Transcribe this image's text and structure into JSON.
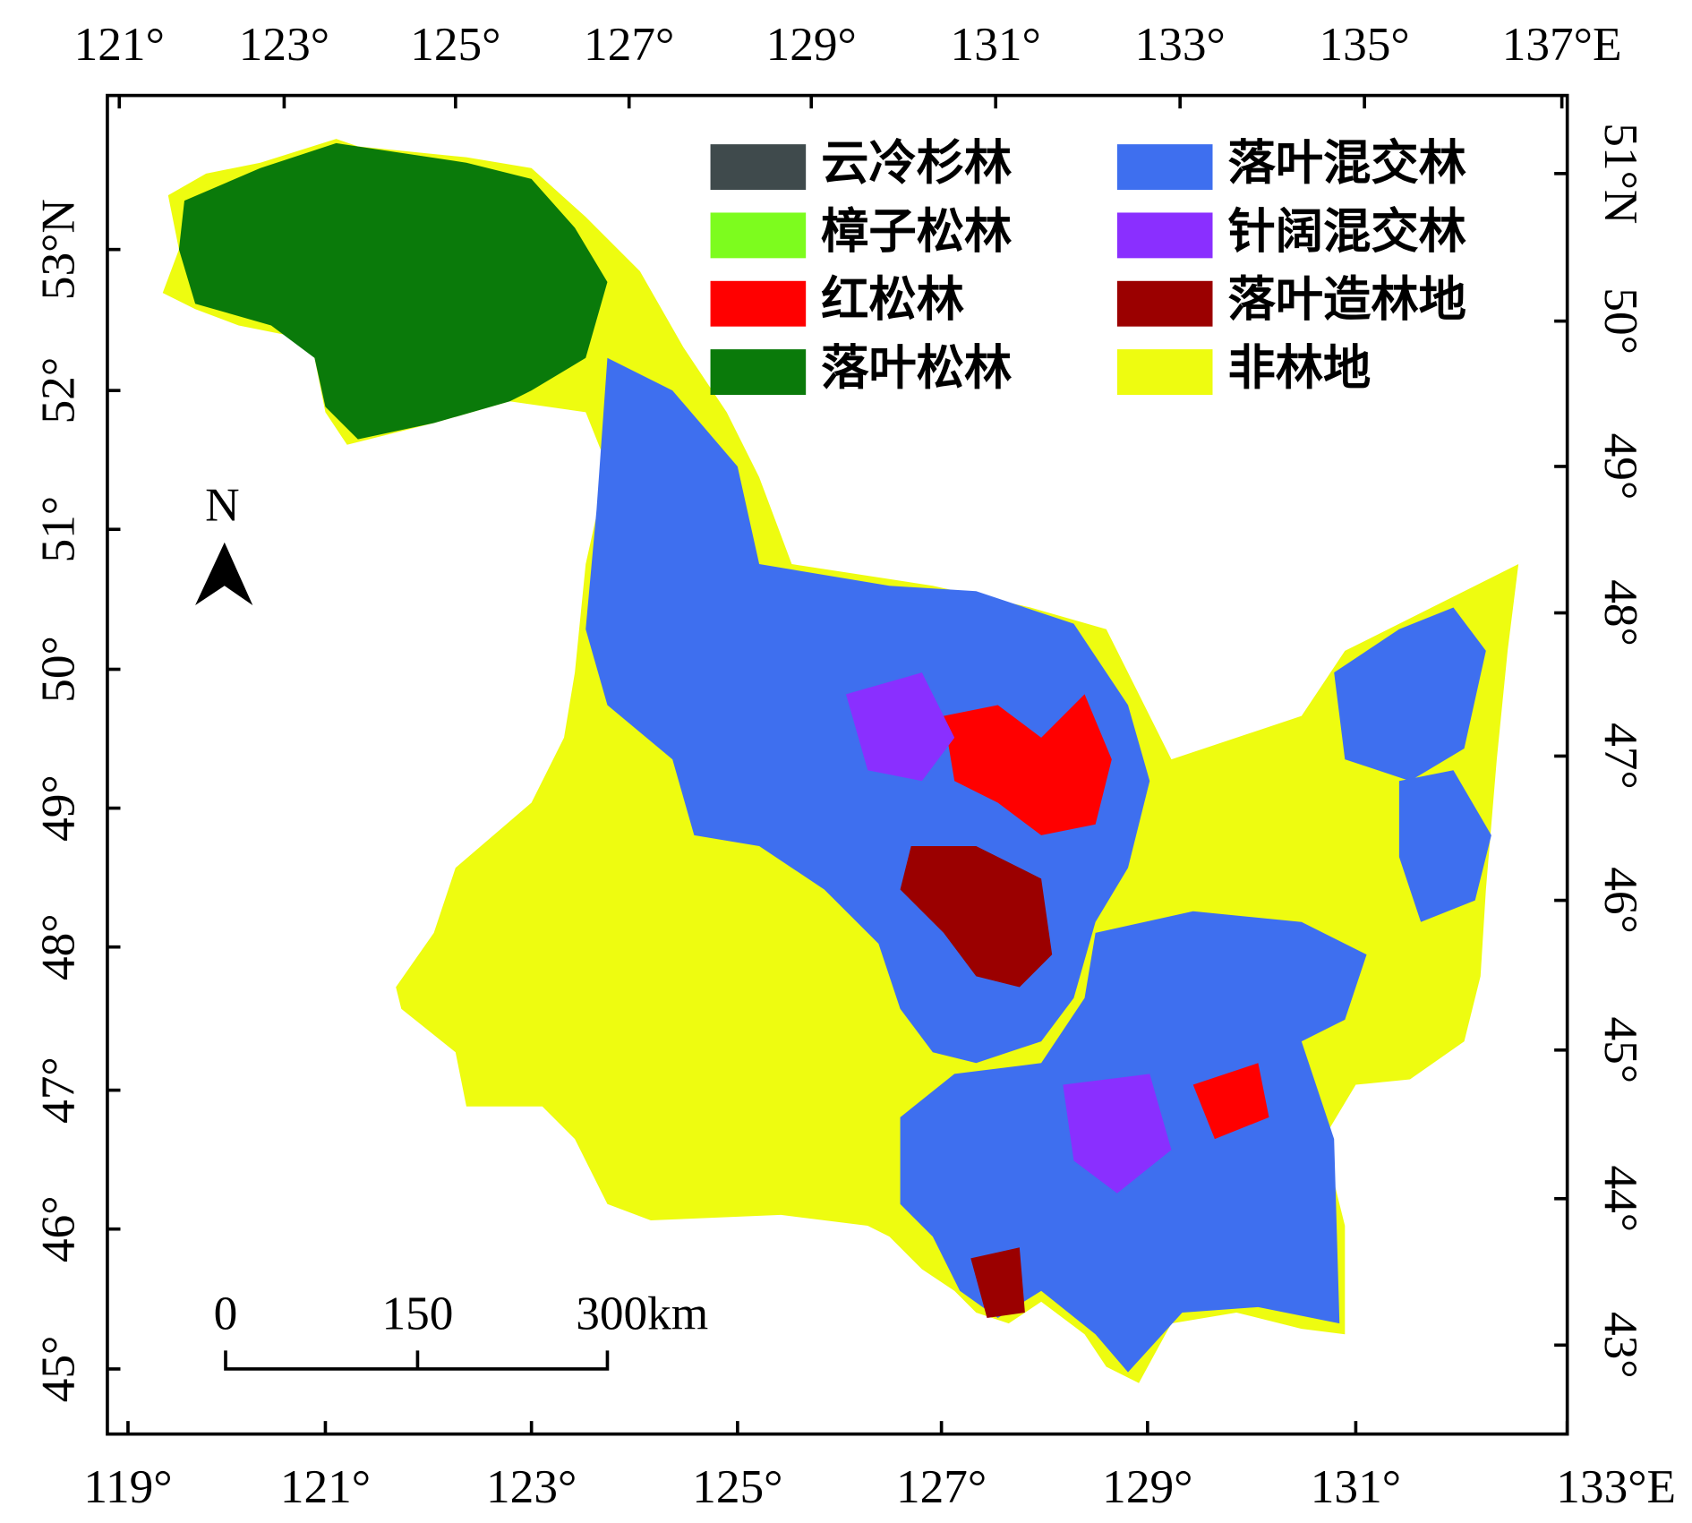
{
  "map": {
    "top_ticks": [
      "121°",
      "123°",
      "125°",
      "127°",
      "129°",
      "131°",
      "133°",
      "135°",
      "137°E"
    ],
    "bottom_ticks": [
      "119°",
      "121°",
      "123°",
      "125°",
      "127°",
      "129°",
      "131°",
      "133°E"
    ],
    "left_ticks": [
      "53°N",
      "52°",
      "51°",
      "50°",
      "49°",
      "48°",
      "47°",
      "46°",
      "45°"
    ],
    "right_ticks": [
      "51°N",
      "50°",
      "49°",
      "48°",
      "47°",
      "46°",
      "45°",
      "44°",
      "43°"
    ],
    "legend": [
      {
        "label": "云冷杉林",
        "color": "#3f4a4c"
      },
      {
        "label": "樟子松林",
        "color": "#7dfc1e"
      },
      {
        "label": "红松林",
        "color": "#ff0000"
      },
      {
        "label": "落叶松林",
        "color": "#0a7a0a"
      },
      {
        "label": "落叶混交林",
        "color": "#3e6fef"
      },
      {
        "label": "针阔混交林",
        "color": "#8a2fff"
      },
      {
        "label": "落叶造林地",
        "color": "#9b0000"
      },
      {
        "label": "非林地",
        "color": "#eefc10"
      }
    ],
    "north": "N",
    "scale_bar": [
      "0",
      "150",
      "300km"
    ]
  }
}
